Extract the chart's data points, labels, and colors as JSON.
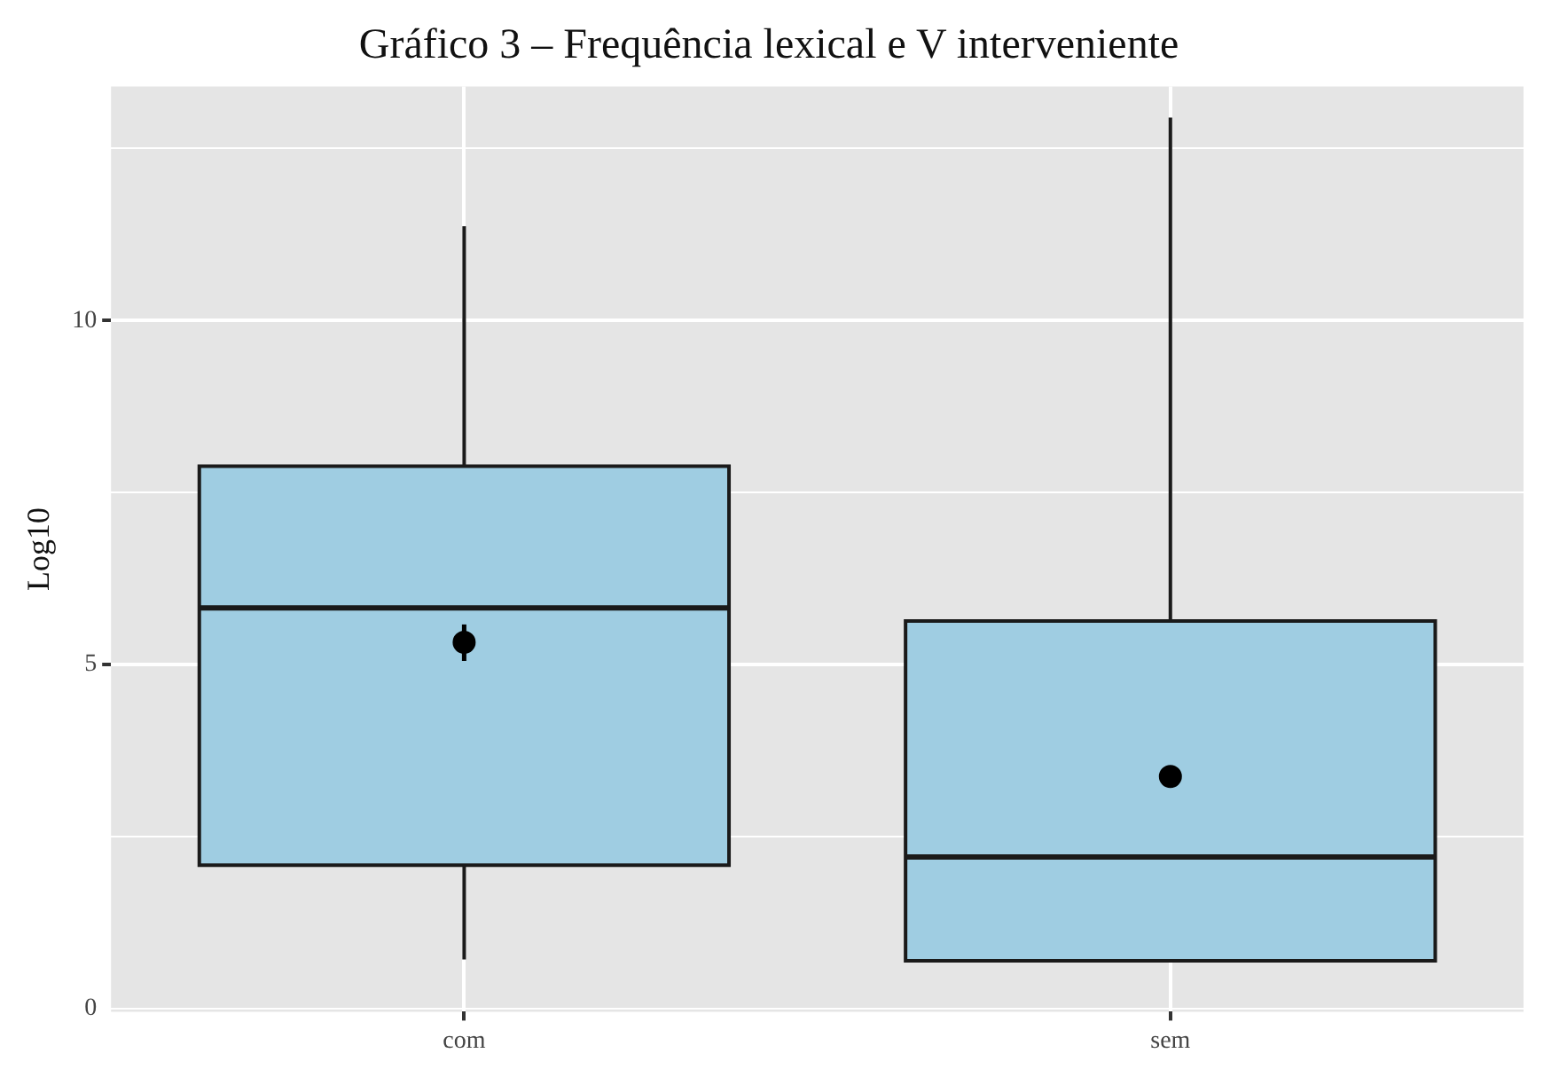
{
  "chart_data": {
    "type": "box",
    "title": "Gráfico 3 – Frequência lexical e V interveniente",
    "ylabel": "Log10",
    "categories": [
      "com",
      "sem"
    ],
    "boxes": [
      {
        "low": 0.71,
        "q1": 2.08,
        "median": 5.82,
        "q3": 7.88,
        "high": 11.37
      },
      {
        "low": 0.69,
        "q1": 0.69,
        "median": 2.2,
        "q3": 5.63,
        "high": 12.95
      }
    ],
    "color": "#9fcde2",
    "series": [
      {
        "type": "scatter",
        "color": "#000000",
        "x": [
          "com",
          "sem"
        ],
        "values": [
          5.32,
          3.37
        ],
        "errors": [
          [
            5.05,
            5.58
          ],
          null
        ]
      }
    ],
    "ylim": [
      -0.05,
      13.4
    ],
    "yticks": [
      0,
      {
        "value": 2.5,
        "label": null
      },
      5,
      {
        "value": 7.5,
        "label": null
      },
      10,
      {
        "value": 12.5,
        "label": null
      }
    ],
    "grid": true,
    "legend": false,
    "marker": "circle"
  }
}
